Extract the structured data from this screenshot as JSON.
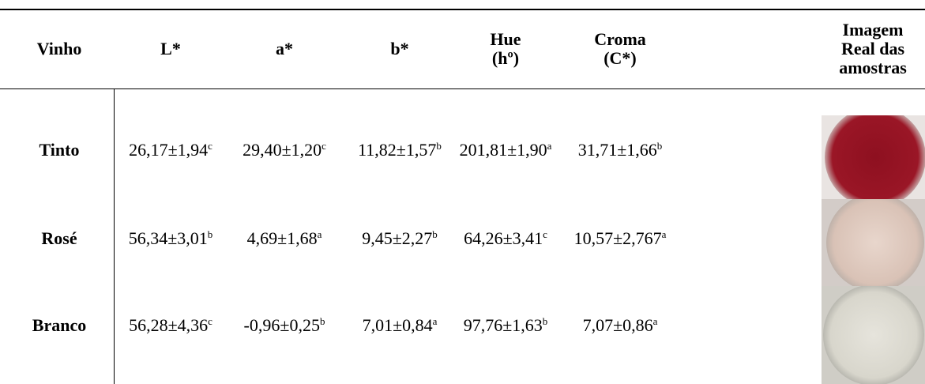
{
  "table": {
    "headers": [
      [
        "Vinho"
      ],
      [
        "L*"
      ],
      [
        "a*"
      ],
      [
        "b*"
      ],
      [
        "Hue",
        "(hº)"
      ],
      [
        "Croma",
        "(C*)"
      ],
      [
        "Imagem",
        "Real das",
        "amostras"
      ]
    ],
    "rows": [
      {
        "label": "Tinto",
        "cells": [
          {
            "value": "26,17±1,94",
            "sup": "c"
          },
          {
            "value": "29,40±1,20",
            "sup": "c"
          },
          {
            "value": "11,82±1,57",
            "sup": "b"
          },
          {
            "value": "201,81±1,90",
            "sup": "a"
          },
          {
            "value": "31,71±1,66",
            "sup": "b"
          }
        ]
      },
      {
        "label": "Rosé",
        "cells": [
          {
            "value": "56,34±3,01",
            "sup": "b"
          },
          {
            "value": "4,69±1,68",
            "sup": "a"
          },
          {
            "value": "9,45±2,27",
            "sup": "b"
          },
          {
            "value": "64,26±3,41",
            "sup": "c"
          },
          {
            "value": "10,57±2,767",
            "sup": "a"
          }
        ]
      },
      {
        "label": "Branco",
        "cells": [
          {
            "value": "56,28±4,36",
            "sup": "c"
          },
          {
            "value": "-0,96±0,25",
            "sup": "b"
          },
          {
            "value": "7,01±0,84",
            "sup": "a"
          },
          {
            "value": "97,76±1,63",
            "sup": "b"
          },
          {
            "value": "7,07±0,86",
            "sup": "a"
          }
        ]
      }
    ]
  }
}
